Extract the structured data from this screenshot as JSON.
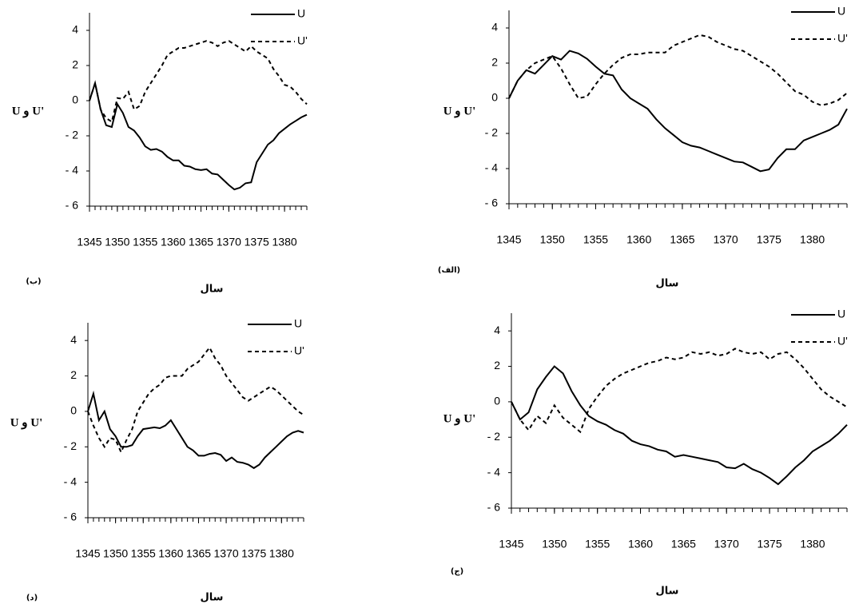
{
  "chart_data": [
    {
      "type": "line",
      "panel_label": "(الف)",
      "xlabel": "سال",
      "ylabel": "U و U'",
      "legend": "upper right",
      "x": [
        1345,
        1346,
        1347,
        1348,
        1349,
        1350,
        1351,
        1352,
        1353,
        1354,
        1355,
        1356,
        1357,
        1358,
        1359,
        1360,
        1361,
        1362,
        1363,
        1364,
        1365,
        1366,
        1367,
        1368,
        1369,
        1370,
        1371,
        1372,
        1373,
        1374,
        1375,
        1376,
        1377,
        1378,
        1379,
        1380,
        1381,
        1382,
        1383,
        1384
      ],
      "xlim": [
        1345,
        1384
      ],
      "xticks": [
        1345,
        1350,
        1355,
        1360,
        1365,
        1370,
        1375,
        1380
      ],
      "ylim": [
        -6,
        5
      ],
      "yticks": [
        {
          "value": -6,
          "label": "- 6"
        },
        {
          "value": -4,
          "label": "- 4"
        },
        {
          "value": -2,
          "label": "- 2"
        },
        0,
        2,
        4
      ],
      "series": [
        {
          "name": "U",
          "color": "#000000",
          "style": "solid",
          "values": [
            0,
            1.0,
            1.6,
            1.4,
            1.9,
            2.4,
            2.2,
            2.7,
            2.55,
            2.25,
            1.8,
            1.4,
            1.3,
            0.5,
            0.0,
            -0.3,
            -0.6,
            -1.2,
            -1.7,
            -2.1,
            -2.5,
            -2.7,
            -2.8,
            -3.0,
            -3.2,
            -3.4,
            -3.6,
            -3.65,
            -3.9,
            -4.15,
            -4.05,
            -3.4,
            -2.9,
            -2.9,
            -2.4,
            -2.2,
            -2.0,
            -1.8,
            -1.5,
            -0.6
          ]
        },
        {
          "name": "U'",
          "color": "#000000",
          "style": "dashed",
          "values": [
            0,
            1.0,
            1.6,
            2.0,
            2.2,
            2.4,
            1.7,
            0.8,
            0.0,
            0.1,
            0.8,
            1.4,
            1.9,
            2.3,
            2.5,
            2.5,
            2.6,
            2.6,
            2.6,
            3.0,
            3.2,
            3.4,
            3.6,
            3.5,
            3.2,
            3.0,
            2.8,
            2.7,
            2.4,
            2.1,
            1.8,
            1.4,
            0.9,
            0.4,
            0.2,
            -0.2,
            -0.4,
            -0.3,
            -0.1,
            0.3
          ]
        }
      ]
    },
    {
      "type": "line",
      "panel_label": "(ب)",
      "xlabel": "سال",
      "ylabel": "U و U'",
      "legend": "upper right",
      "x": [
        1345,
        1346,
        1347,
        1348,
        1349,
        1350,
        1351,
        1352,
        1353,
        1354,
        1355,
        1356,
        1357,
        1358,
        1359,
        1360,
        1361,
        1362,
        1363,
        1364,
        1365,
        1366,
        1367,
        1368,
        1369,
        1370,
        1371,
        1372,
        1373,
        1374,
        1375,
        1376,
        1377,
        1378,
        1379,
        1380,
        1381,
        1382,
        1383,
        1384
      ],
      "xlim": [
        1345,
        1384
      ],
      "xticks": [
        1345,
        1350,
        1355,
        1360,
        1365,
        1370,
        1375,
        1380
      ],
      "ylim": [
        -6,
        5
      ],
      "yticks": [
        {
          "value": -6,
          "label": "- 6"
        },
        {
          "value": -4,
          "label": "- 4"
        },
        {
          "value": -2,
          "label": "- 2"
        },
        0,
        2,
        4
      ],
      "series": [
        {
          "name": "U",
          "color": "#000000",
          "style": "solid",
          "values": [
            0,
            1,
            -0.5,
            -1.4,
            -1.5,
            -0.2,
            -0.7,
            -1.5,
            -1.7,
            -2.1,
            -2.6,
            -2.8,
            -2.75,
            -2.9,
            -3.2,
            -3.4,
            -3.4,
            -3.7,
            -3.75,
            -3.9,
            -3.95,
            -3.9,
            -4.15,
            -4.2,
            -4.5,
            -4.8,
            -5.05,
            -4.95,
            -4.7,
            -4.65,
            -3.5,
            -3.0,
            -2.5,
            -2.25,
            -1.85,
            -1.6,
            -1.35,
            -1.15,
            -0.95,
            -0.8
          ]
        },
        {
          "name": "U'",
          "color": "#000000",
          "style": "dashed",
          "values": [
            0,
            1,
            -0.5,
            -1.0,
            -1.2,
            0.15,
            0.1,
            0.5,
            -0.5,
            -0.3,
            0.5,
            1.0,
            1.5,
            2.0,
            2.6,
            2.8,
            3.0,
            3.0,
            3.1,
            3.2,
            3.3,
            3.4,
            3.3,
            3.1,
            3.3,
            3.4,
            3.2,
            3.0,
            2.8,
            3.1,
            2.8,
            2.6,
            2.4,
            1.8,
            1.4,
            0.9,
            0.8,
            0.5,
            0.1,
            -0.2
          ]
        }
      ]
    },
    {
      "type": "line",
      "panel_label": "(ج)",
      "xlabel": "سال",
      "ylabel": "U و U'",
      "legend": "upper right",
      "x": [
        1345,
        1346,
        1347,
        1348,
        1349,
        1350,
        1351,
        1352,
        1353,
        1354,
        1355,
        1356,
        1357,
        1358,
        1359,
        1360,
        1361,
        1362,
        1363,
        1364,
        1365,
        1366,
        1367,
        1368,
        1369,
        1370,
        1371,
        1372,
        1373,
        1374,
        1375,
        1376,
        1377,
        1378,
        1379,
        1380,
        1381,
        1382,
        1383,
        1384
      ],
      "xlim": [
        1345,
        1384
      ],
      "xticks": [
        1345,
        1350,
        1355,
        1360,
        1365,
        1370,
        1375,
        1380
      ],
      "ylim": [
        -6,
        5
      ],
      "yticks": [
        {
          "value": -6,
          "label": "- 6"
        },
        {
          "value": -4,
          "label": "- 4"
        },
        {
          "value": -2,
          "label": "- 2"
        },
        0,
        2,
        4
      ],
      "series": [
        {
          "name": "U",
          "color": "#000000",
          "style": "solid",
          "values": [
            0,
            -1.0,
            -0.6,
            0.7,
            1.4,
            2.0,
            1.6,
            0.6,
            -0.2,
            -0.8,
            -1.1,
            -1.3,
            -1.6,
            -1.8,
            -2.2,
            -2.4,
            -2.5,
            -2.7,
            -2.8,
            -3.1,
            -3.0,
            -3.1,
            -3.2,
            -3.3,
            -3.4,
            -3.7,
            -3.75,
            -3.5,
            -3.8,
            -4.0,
            -4.3,
            -4.65,
            -4.2,
            -3.7,
            -3.3,
            -2.8,
            -2.5,
            -2.2,
            -1.8,
            -1.3
          ]
        },
        {
          "name": "U'",
          "color": "#000000",
          "style": "dashed",
          "values": [
            0,
            -1.0,
            -1.6,
            -0.8,
            -1.2,
            -0.2,
            -0.9,
            -1.3,
            -1.7,
            -0.4,
            0.3,
            0.9,
            1.3,
            1.6,
            1.8,
            2.0,
            2.2,
            2.3,
            2.5,
            2.4,
            2.5,
            2.8,
            2.7,
            2.8,
            2.6,
            2.7,
            3.0,
            2.8,
            2.7,
            2.8,
            2.4,
            2.7,
            2.8,
            2.4,
            1.9,
            1.3,
            0.7,
            0.3,
            0.0,
            -0.3
          ]
        }
      ]
    },
    {
      "type": "line",
      "panel_label": "(د)",
      "xlabel": "سال",
      "ylabel": "U و U'",
      "legend": "upper right",
      "x": [
        1345,
        1346,
        1347,
        1348,
        1349,
        1350,
        1351,
        1352,
        1353,
        1354,
        1355,
        1356,
        1357,
        1358,
        1359,
        1360,
        1361,
        1362,
        1363,
        1364,
        1365,
        1366,
        1367,
        1368,
        1369,
        1370,
        1371,
        1372,
        1373,
        1374,
        1375,
        1376,
        1377,
        1378,
        1379,
        1380,
        1381,
        1382,
        1383,
        1384
      ],
      "xlim": [
        1345,
        1384
      ],
      "xticks": [
        1345,
        1350,
        1355,
        1360,
        1365,
        1370,
        1375,
        1380
      ],
      "ylim": [
        -6,
        5
      ],
      "yticks": [
        {
          "value": -6,
          "label": "- 6"
        },
        {
          "value": -4,
          "label": "- 4"
        },
        {
          "value": -2,
          "label": "- 2"
        },
        0,
        2,
        4
      ],
      "series": [
        {
          "name": "U",
          "color": "#000000",
          "style": "solid",
          "values": [
            0,
            1.0,
            -0.5,
            0.0,
            -1.0,
            -1.4,
            -2.0,
            -2.0,
            -1.9,
            -1.4,
            -1.0,
            -0.95,
            -0.9,
            -0.95,
            -0.8,
            -0.5,
            -1.0,
            -1.5,
            -2.0,
            -2.2,
            -2.5,
            -2.5,
            -2.4,
            -2.35,
            -2.45,
            -2.8,
            -2.6,
            -2.85,
            -2.9,
            -3.0,
            -3.2,
            -3.0,
            -2.6,
            -2.3,
            -2.0,
            -1.7,
            -1.4,
            -1.2,
            -1.1,
            -1.2
          ]
        },
        {
          "name": "U'",
          "color": "#000000",
          "style": "dashed",
          "values": [
            0,
            -0.8,
            -1.5,
            -2.0,
            -1.5,
            -1.6,
            -2.3,
            -1.6,
            -1.0,
            0.0,
            0.5,
            1.0,
            1.3,
            1.5,
            1.9,
            2.0,
            2.0,
            2.0,
            2.4,
            2.6,
            2.8,
            3.2,
            3.6,
            3.0,
            2.6,
            2.0,
            1.6,
            1.2,
            0.8,
            0.6,
            0.8,
            1.0,
            1.2,
            1.4,
            1.2,
            0.9,
            0.6,
            0.3,
            0.0,
            -0.2
          ]
        }
      ]
    }
  ]
}
